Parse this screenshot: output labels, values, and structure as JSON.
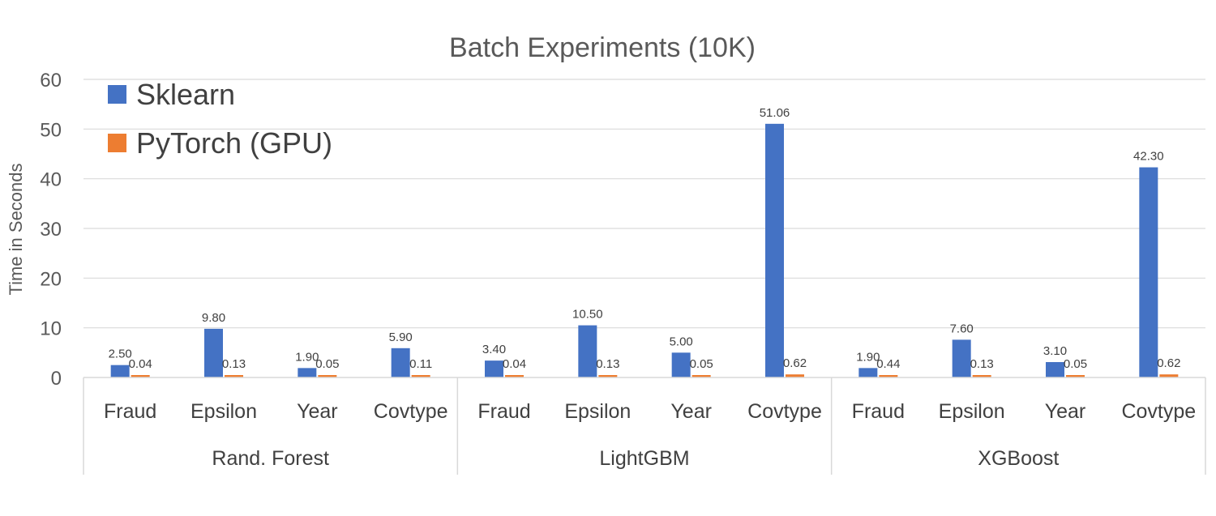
{
  "chart_data": {
    "type": "bar",
    "title": "Batch Experiments (10K)",
    "ylabel": "Time in  Seconds",
    "xlabel": "",
    "ylim": [
      0,
      60
    ],
    "yticks": [
      0,
      10,
      20,
      30,
      40,
      50,
      60
    ],
    "grid": true,
    "legend_position": "top-left",
    "groups": [
      {
        "name": "Rand. Forest",
        "categories": [
          "Fraud",
          "Epsilon",
          "Year",
          "Covtype"
        ]
      },
      {
        "name": "LightGBM",
        "categories": [
          "Fraud",
          "Epsilon",
          "Year",
          "Covtype"
        ]
      },
      {
        "name": "XGBoost",
        "categories": [
          "Fraud",
          "Epsilon",
          "Year",
          "Covtype"
        ]
      }
    ],
    "series": [
      {
        "name": "Sklearn",
        "color": "#4472C4",
        "values": [
          2.5,
          9.8,
          1.9,
          5.9,
          3.4,
          10.5,
          5.0,
          51.06,
          1.9,
          7.6,
          3.1,
          42.3
        ],
        "labels": [
          "2.50",
          "9.80",
          "1.90",
          "5.90",
          "3.40",
          "10.50",
          "5.00",
          "51.06",
          "1.90",
          "7.60",
          "3.10",
          "42.30"
        ]
      },
      {
        "name": "PyTorch (GPU)",
        "color": "#ED7D31",
        "values": [
          0.04,
          0.13,
          0.05,
          0.11,
          0.04,
          0.13,
          0.05,
          0.62,
          0.44,
          0.13,
          0.05,
          0.62
        ],
        "labels": [
          "0.04",
          "0.13",
          "0.05",
          "0.11",
          "0.04",
          "0.13",
          "0.05",
          "0.62",
          "0.44",
          "0.13",
          "0.05",
          "0.62"
        ]
      }
    ]
  }
}
